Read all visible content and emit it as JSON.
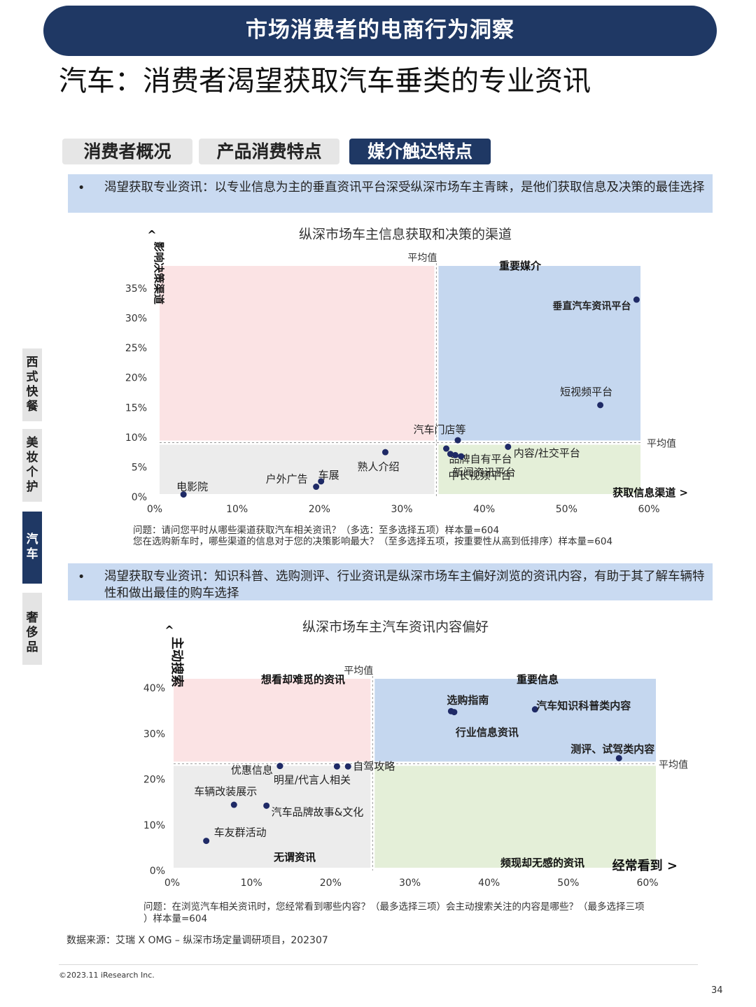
{
  "banner": "市场消费者的电商行为洞察",
  "page_title": "汽车：消费者渴望获取汽车垂类的专业资讯",
  "tabs": [
    {
      "label": "消费者概况",
      "active": false
    },
    {
      "label": "产品消费特点",
      "active": false
    },
    {
      "label": "媒介触达特点",
      "active": true
    }
  ],
  "side_tabs": [
    {
      "label": "西式快餐",
      "active": false
    },
    {
      "label": "美妆个护",
      "active": false
    },
    {
      "label": "汽车",
      "active": true
    },
    {
      "label": "奢侈品",
      "active": false
    }
  ],
  "bullets": {
    "first": {
      "marker": "•",
      "text": "渴望获取专业资讯：以专业信息为主的垂直资讯平台深受纵深市场车主青睐，是他们获取信息及决策的最佳选择"
    },
    "second": {
      "marker": "•",
      "text": "渴望获取专业资讯：知识科普、选购测评、行业资讯是纵深市场车主偏好浏览的资讯内容，有助于其了解车辆特性和做出最佳的购车选择"
    }
  },
  "notes": {
    "chart1_line1": "问题：请问您平时从哪些渠道获取汽车相关资讯？（多选：至多选择五项）样本量=604",
    "chart1_line2": "您在选购新车时，哪些渠道的信息对于您的决策影响最大？（至多选择五项，按重要性从高到低排序）样本量=604",
    "chart2_line1": "问题：在浏览汽车相关资讯时，您经常看到哪些内容？（最多选择三项）会主动搜索关注的内容是哪些？（最多选择三项",
    "chart2_line2": "）样本量=604"
  },
  "source": "数据来源：艾瑞 X OMG – 纵深市场定量调研项目，202307",
  "copyright": "©2023.11 iResearch Inc.",
  "page_number": "34",
  "colors": {
    "navy": "#1f3864",
    "quad_pink": "#fbe3e4",
    "quad_blue": "#c5d7ef",
    "quad_gray": "#ececec",
    "quad_green": "#e4efd8",
    "point": "#1f2a66"
  },
  "chart_data": [
    {
      "type": "scatter",
      "title": "纵深市场车主信息获取和决策的渠道",
      "xlabel": "获取信息渠道 >",
      "ylabel": "影响决策渠道 ^",
      "xlim": [
        0,
        0.6
      ],
      "ylim": [
        0,
        0.35
      ],
      "x_ticks": [
        "0%",
        "10%",
        "20%",
        "30%",
        "40%",
        "50%",
        "60%"
      ],
      "y_ticks": [
        "0%",
        "5%",
        "10%",
        "15%",
        "20%",
        "25%",
        "30%",
        "35%"
      ],
      "avg_x": 0.342,
      "avg_y": 0.091,
      "avg_x_label": "平均值",
      "avg_y_label": "平均值",
      "quadrant_labels": {
        "top_right": "重要媒介"
      },
      "points": [
        {
          "label": "垂直汽车资讯平台",
          "x": 0.585,
          "y": 0.331
        },
        {
          "label": "短视频平台",
          "x": 0.541,
          "y": 0.154
        },
        {
          "label": "汽车门店等",
          "x": 0.368,
          "y": 0.095
        },
        {
          "label": "内容/社交平台",
          "x": 0.429,
          "y": 0.084
        },
        {
          "label": "品牌自有平台",
          "x": 0.354,
          "y": 0.081
        },
        {
          "label": "",
          "x": 0.359,
          "y": 0.072
        },
        {
          "label": "新闻资讯平台",
          "x": 0.372,
          "y": 0.068
        },
        {
          "label": "中长视频平台",
          "x": 0.365,
          "y": 0.07
        },
        {
          "label": "熟人介绍",
          "x": 0.28,
          "y": 0.075
        },
        {
          "label": "车展",
          "x": 0.202,
          "y": 0.026
        },
        {
          "label": "户外广告",
          "x": 0.196,
          "y": 0.017
        },
        {
          "label": "电影院",
          "x": 0.035,
          "y": 0.004
        }
      ]
    },
    {
      "type": "scatter",
      "title": "纵深市场车主汽车资讯内容偏好",
      "xlabel": "经常看到 >",
      "ylabel": "主动搜索 ^",
      "xlim": [
        0,
        0.6
      ],
      "ylim": [
        0,
        0.4
      ],
      "x_ticks": [
        "0%",
        "10%",
        "20%",
        "30%",
        "40%",
        "50%",
        "60%"
      ],
      "y_ticks": [
        "0%",
        "10%",
        "20%",
        "30%",
        "40%"
      ],
      "avg_x": 0.253,
      "avg_y": 0.234,
      "avg_x_label": "平均值",
      "avg_y_label": "平均值",
      "quadrant_labels": {
        "top_left": "想看却难觅的资讯",
        "top_right": "重要信息",
        "bottom_left": "无谓资讯",
        "bottom_right": "频现却无感的资讯"
      },
      "points": [
        {
          "label": "选购指南",
          "x": 0.352,
          "y": 0.349
        },
        {
          "label": "行业信息资讯",
          "x": 0.356,
          "y": 0.347
        },
        {
          "label": "汽车知识科普类内容",
          "x": 0.458,
          "y": 0.353
        },
        {
          "label": "测评、试驾类内容",
          "x": 0.564,
          "y": 0.246
        },
        {
          "label": "自驾攻略",
          "x": 0.222,
          "y": 0.228
        },
        {
          "label": "",
          "x": 0.208,
          "y": 0.228
        },
        {
          "label": "优惠信息",
          "x": 0.136,
          "y": 0.229
        },
        {
          "label": "明星/代言人相关",
          "x": 0.136,
          "y": 0.229
        },
        {
          "label": "车辆改装展示",
          "x": 0.078,
          "y": 0.144
        },
        {
          "label": "汽车品牌故事&文化",
          "x": 0.119,
          "y": 0.142
        },
        {
          "label": "车友群活动",
          "x": 0.043,
          "y": 0.065
        }
      ]
    }
  ]
}
